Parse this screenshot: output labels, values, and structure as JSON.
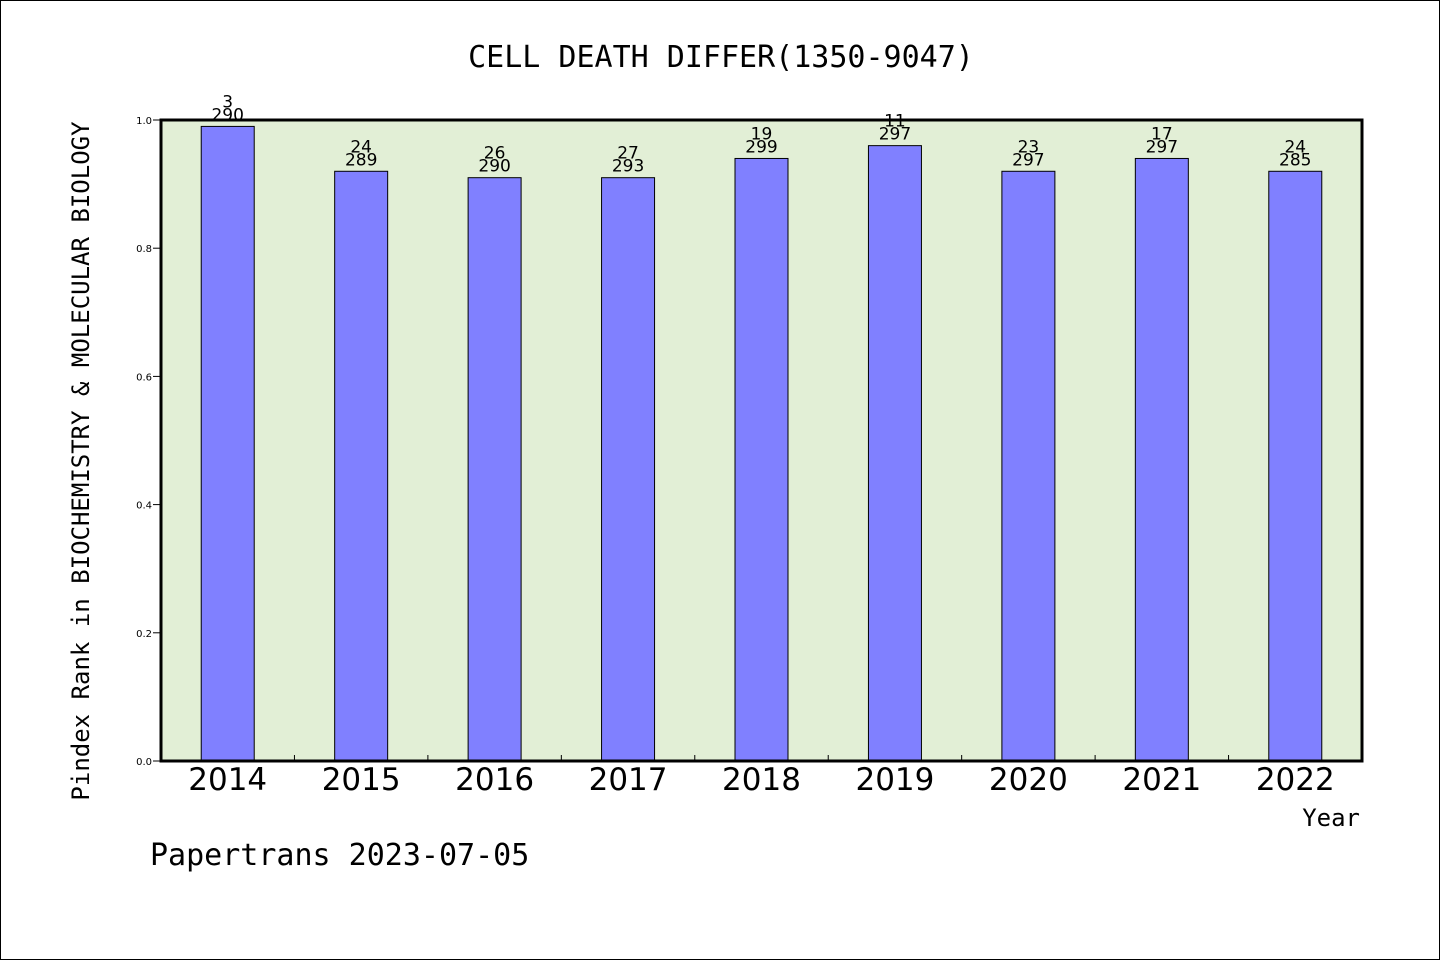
{
  "chart_data": {
    "type": "bar",
    "title": "CELL DEATH DIFFER(1350-9047)",
    "xlabel": "Year",
    "ylabel": "Pindex Rank in BIOCHEMISTRY & MOLECULAR BIOLOGY",
    "categories": [
      "2014",
      "2015",
      "2016",
      "2017",
      "2018",
      "2019",
      "2020",
      "2021",
      "2022"
    ],
    "values": [
      0.99,
      0.92,
      0.91,
      0.91,
      0.94,
      0.96,
      0.92,
      0.94,
      0.92
    ],
    "ranks": [
      "3",
      "24",
      "26",
      "27",
      "19",
      "11",
      "23",
      "17",
      "24"
    ],
    "totals": [
      "290",
      "289",
      "290",
      "293",
      "299",
      "297",
      "297",
      "297",
      "285"
    ],
    "ylim": [
      0,
      1.0
    ],
    "yticks": [
      "0.0",
      "0.2",
      "0.4",
      "0.6",
      "0.8",
      "1.0"
    ],
    "grid": false,
    "colors": {
      "bar": "#8080ff",
      "plot_background": "#e2efd6",
      "axes": "#000000"
    }
  },
  "footer": "Papertrans 2023-07-05"
}
